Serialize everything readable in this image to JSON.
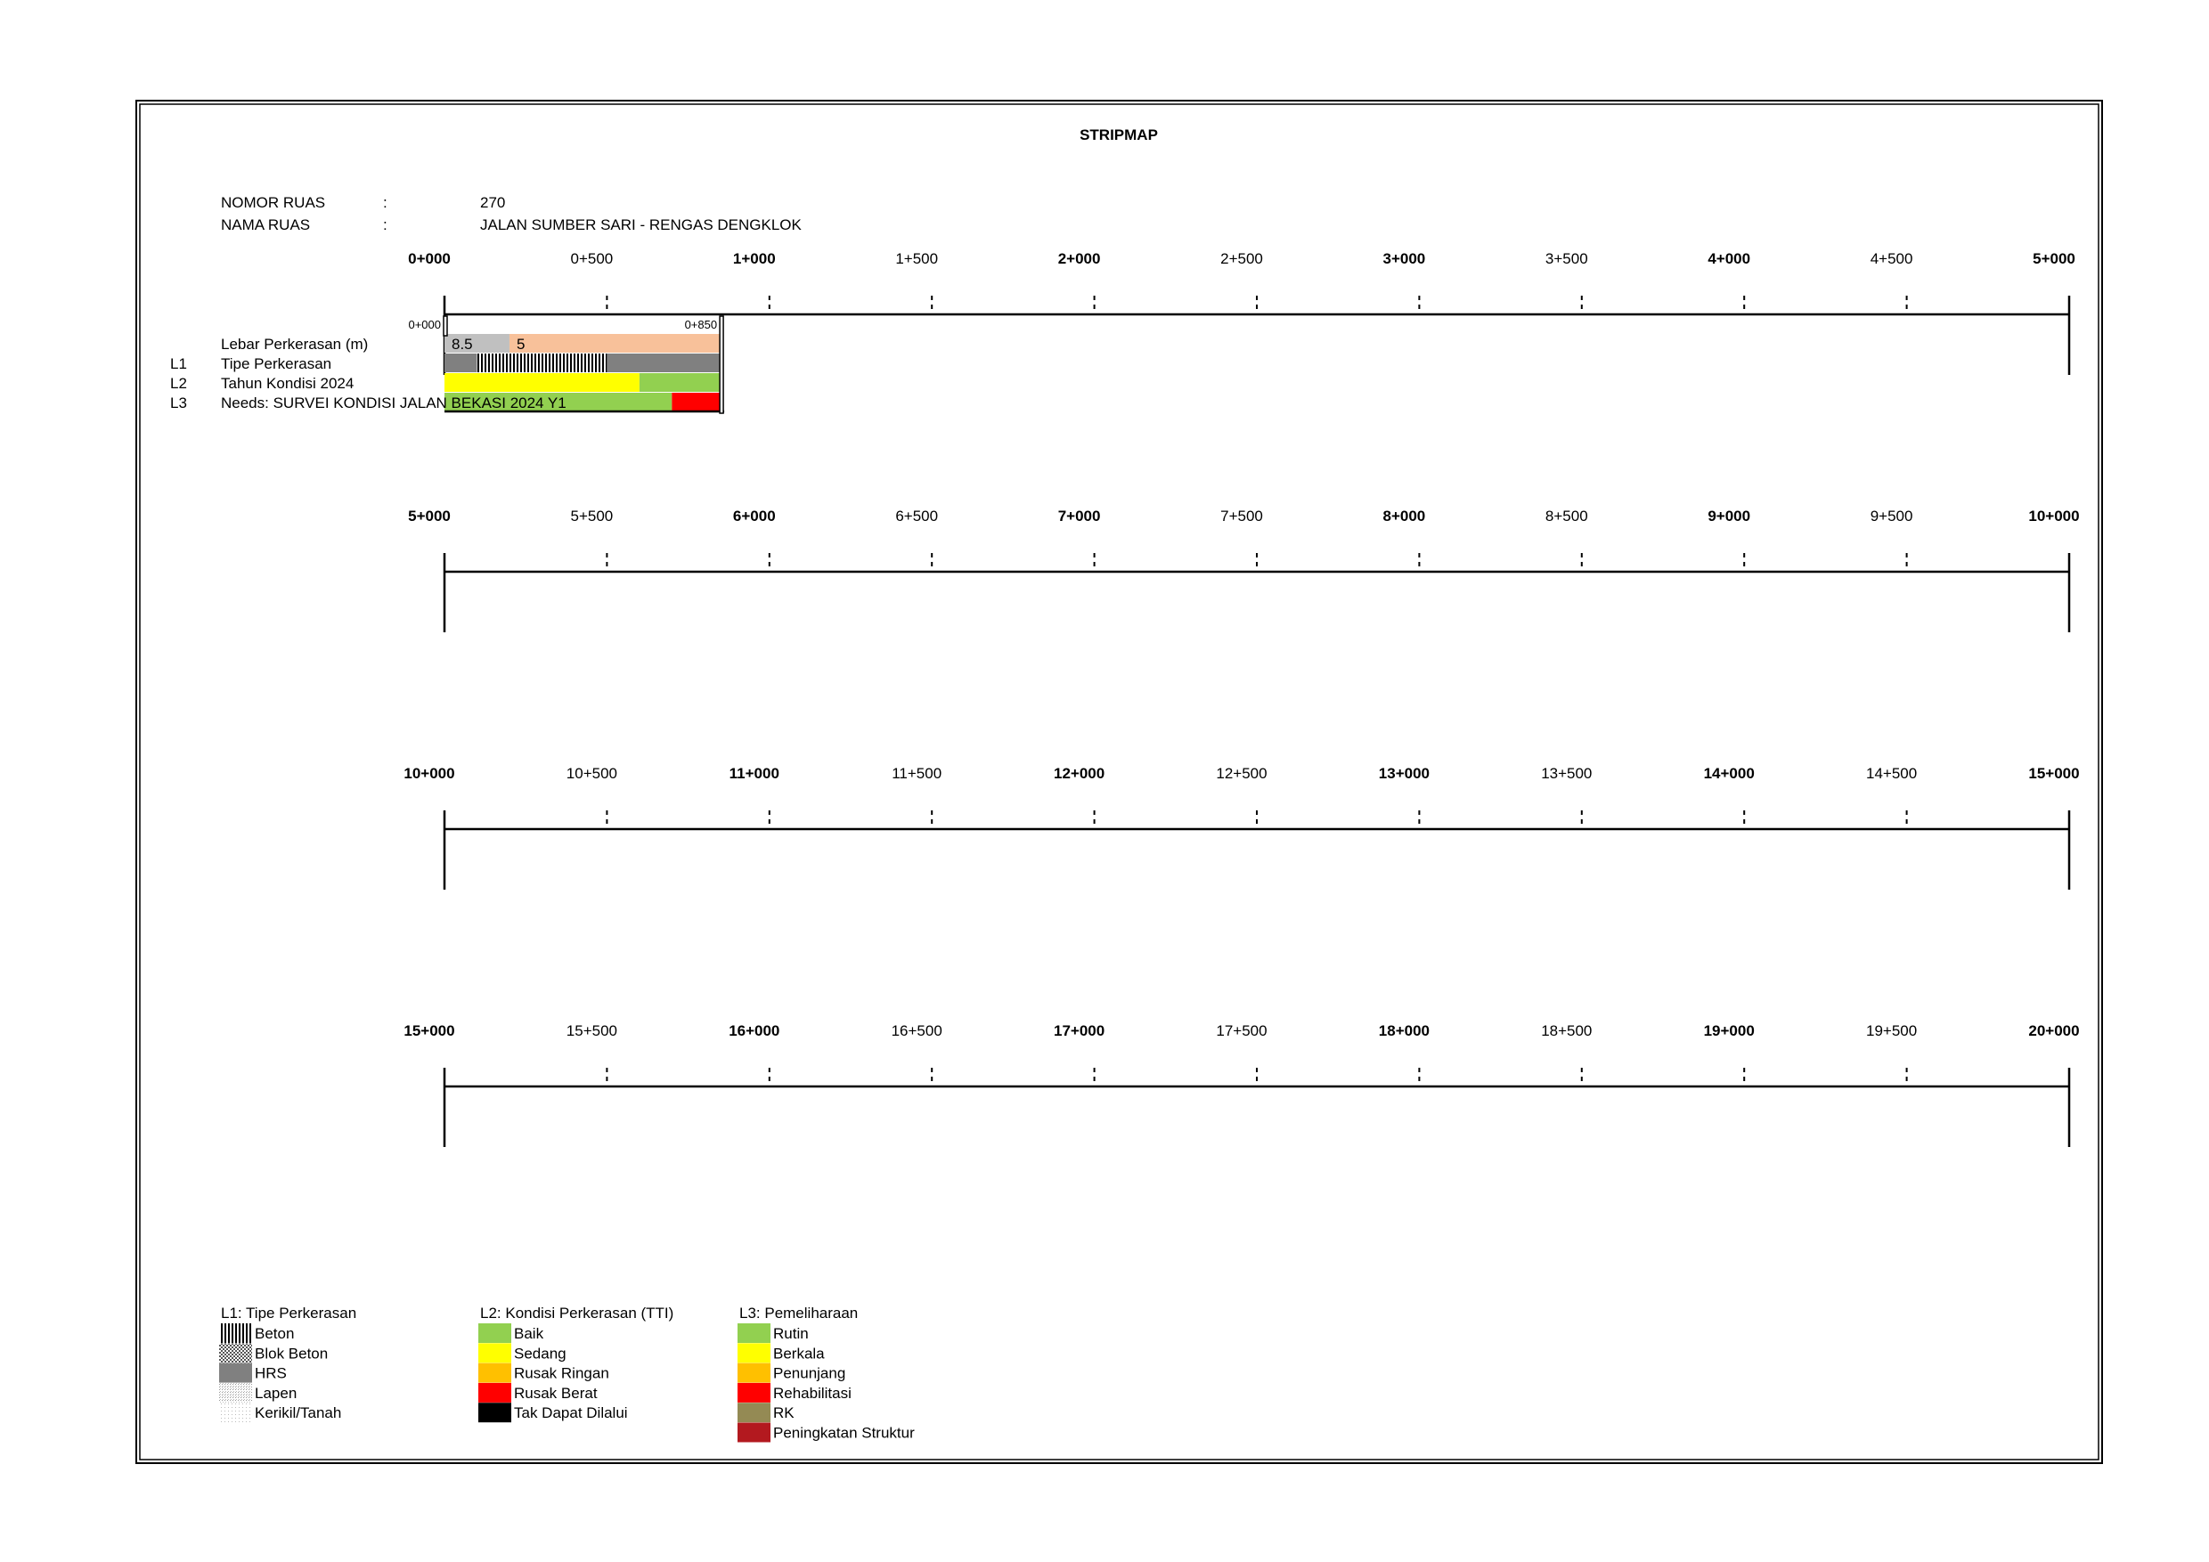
{
  "title": "STRIPMAP",
  "info": {
    "nomor_label": "NOMOR RUAS",
    "nomor_sep": ":",
    "nomor_value": "270",
    "nama_label": "NAMA RUAS",
    "nama_sep": ":",
    "nama_value": "JALAN SUMBER SARI - RENGAS DENGKLOK"
  },
  "rows": [
    {
      "ticks": [
        "0+000",
        "0+500",
        "1+000",
        "1+500",
        "2+000",
        "2+500",
        "3+000",
        "3+500",
        "4+000",
        "4+500",
        "5+000"
      ]
    },
    {
      "ticks": [
        "5+000",
        "5+500",
        "6+000",
        "6+500",
        "7+000",
        "7+500",
        "8+000",
        "8+500",
        "9+000",
        "9+500",
        "10+000"
      ]
    },
    {
      "ticks": [
        "10+000",
        "10+500",
        "11+000",
        "11+500",
        "12+000",
        "12+500",
        "13+000",
        "13+500",
        "14+000",
        "14+500",
        "15+000"
      ]
    },
    {
      "ticks": [
        "15+000",
        "15+500",
        "16+000",
        "16+500",
        "17+000",
        "17+500",
        "18+000",
        "18+500",
        "19+000",
        "19+500",
        "20+000"
      ]
    }
  ],
  "strip": {
    "start_label": "0+000",
    "end_label": "0+850",
    "start_km": 0,
    "end_km": 0.85,
    "layer_labels": {
      "lebar": "Lebar Perkerasan (m)",
      "l1_code": "L1",
      "l1": "Tipe Perkerasan",
      "l2_code": "L2",
      "l2": "Tahun Kondisi 2024",
      "l3_code": "L3",
      "l3": "Needs: SURVEI KONDISI JALAN BEKASI 2024 Y1"
    },
    "lebar": [
      {
        "from": 0,
        "to": 0.2,
        "value": "8.5",
        "color": "#c0c0c0"
      },
      {
        "from": 0.2,
        "to": 0.85,
        "value": "5",
        "color": "#f8c19a"
      }
    ],
    "l1": [
      {
        "from": 0,
        "to": 0.1,
        "type": "HRS"
      },
      {
        "from": 0.1,
        "to": 0.5,
        "type": "Beton"
      },
      {
        "from": 0.5,
        "to": 0.85,
        "type": "HRS"
      }
    ],
    "l2": [
      {
        "from": 0,
        "to": 0.6,
        "color": "#ffff00"
      },
      {
        "from": 0.6,
        "to": 0.85,
        "color": "#92d050"
      }
    ],
    "l3": [
      {
        "from": 0,
        "to": 0.7,
        "color": "#92d050"
      },
      {
        "from": 0.7,
        "to": 0.85,
        "color": "#ff0000"
      }
    ]
  },
  "legend": {
    "l1": {
      "title": "L1: Tipe Perkerasan",
      "items": [
        {
          "label": "Beton",
          "pattern": "beton"
        },
        {
          "label": "Blok Beton",
          "pattern": "blok"
        },
        {
          "label": "HRS",
          "pattern": "hrs"
        },
        {
          "label": "Lapen",
          "pattern": "lapen"
        },
        {
          "label": "Kerikil/Tanah",
          "pattern": "kerikil"
        }
      ]
    },
    "l2": {
      "title": "L2: Kondisi Perkerasan (TTI)",
      "items": [
        {
          "label": "Baik",
          "color": "#92d050"
        },
        {
          "label": "Sedang",
          "color": "#ffff00"
        },
        {
          "label": "Rusak Ringan",
          "color": "#ffc000"
        },
        {
          "label": "Rusak Berat",
          "color": "#ff0000"
        },
        {
          "label": "Tak Dapat Dilalui",
          "color": "#000000"
        }
      ]
    },
    "l3": {
      "title": "L3: Pemeliharaan",
      "items": [
        {
          "label": "Rutin",
          "color": "#92d050"
        },
        {
          "label": "Berkala",
          "color": "#ffff00"
        },
        {
          "label": "Penunjang",
          "color": "#ffc000"
        },
        {
          "label": "Rehabilitasi",
          "color": "#ff0000"
        },
        {
          "label": "RK",
          "color": "#948a54"
        },
        {
          "label": "Peningkatan Struktur",
          "color": "#b3191f"
        }
      ]
    }
  }
}
